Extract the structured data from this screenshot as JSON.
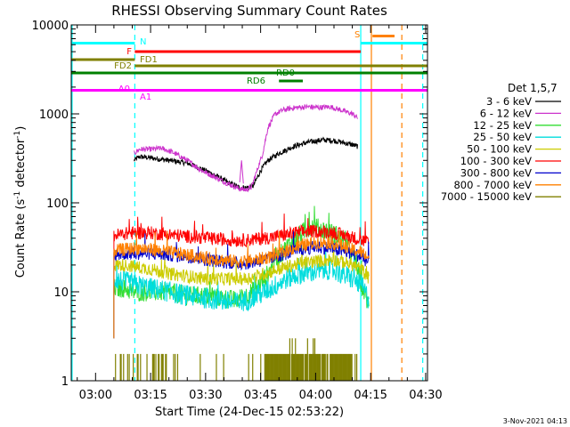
{
  "chart_data": {
    "type": "line",
    "title": "RHESSI Observing Summary Count Rates",
    "xlabel": "Start Time (24-Dec-15 02:53:22)",
    "ylabel_parts": [
      "Count Rate (s",
      "-1",
      " detector",
      "-1",
      ")"
    ],
    "y_scale": "log",
    "xlim_minutes": [
      173.37,
      270.5
    ],
    "ylim": [
      1,
      10000
    ],
    "x_ticks": [
      {
        "m": 180,
        "label": "03:00"
      },
      {
        "m": 195,
        "label": "03:15"
      },
      {
        "m": 210,
        "label": "03:30"
      },
      {
        "m": 225,
        "label": "03:45"
      },
      {
        "m": 240,
        "label": "04:00"
      },
      {
        "m": 255,
        "label": "04:15"
      },
      {
        "m": 270,
        "label": "04:30"
      }
    ],
    "y_ticks": [
      {
        "v": 1,
        "label": "1"
      },
      {
        "v": 10,
        "label": "10"
      },
      {
        "v": 100,
        "label": "100"
      },
      {
        "v": 1000,
        "label": "1000"
      },
      {
        "v": 10000,
        "label": "10000"
      }
    ],
    "legend_title": "Det 1,5,7",
    "legend_position": "right",
    "series": [
      {
        "name": "3 - 6 keV",
        "color": "#000000",
        "points": [
          [
            190.5,
            300
          ],
          [
            192,
            330
          ],
          [
            195,
            320
          ],
          [
            200,
            300
          ],
          [
            205,
            280
          ],
          [
            210,
            230
          ],
          [
            213,
            200
          ],
          [
            216,
            170
          ],
          [
            219,
            150
          ],
          [
            221,
            148
          ],
          [
            223,
            155
          ],
          [
            225,
            230
          ],
          [
            227,
            300
          ],
          [
            230,
            360
          ],
          [
            234,
            430
          ],
          [
            238,
            480
          ],
          [
            242,
            510
          ],
          [
            245,
            500
          ],
          [
            248,
            470
          ],
          [
            250,
            450
          ],
          [
            251.5,
            430
          ]
        ]
      },
      {
        "name": "6 - 12 keV",
        "color": "#cc33cc",
        "points": [
          [
            190.5,
            360
          ],
          [
            192,
            400
          ],
          [
            195,
            400
          ],
          [
            198,
            410
          ],
          [
            201,
            370
          ],
          [
            205,
            300
          ],
          [
            209,
            230
          ],
          [
            213,
            190
          ],
          [
            216,
            165
          ],
          [
            219,
            145
          ],
          [
            221,
            140
          ],
          [
            222.5,
            150
          ],
          [
            224,
            230
          ],
          [
            225.5,
            350
          ],
          [
            227,
            700
          ],
          [
            229,
            1000
          ],
          [
            231,
            1100
          ],
          [
            233,
            1150
          ],
          [
            235,
            1180
          ],
          [
            238,
            1200
          ],
          [
            241,
            1180
          ],
          [
            244,
            1200
          ],
          [
            247,
            1100
          ],
          [
            250,
            1000
          ],
          [
            251.5,
            900
          ]
        ]
      },
      {
        "name": "12 - 25 keV",
        "color": "#33dd33",
        "points": [
          [
            185,
            11
          ],
          [
            188,
            11
          ],
          [
            190,
            10
          ],
          [
            195,
            10
          ],
          [
            200,
            10
          ],
          [
            205,
            9
          ],
          [
            210,
            9
          ],
          [
            215,
            8.5
          ],
          [
            218,
            8
          ],
          [
            221,
            9
          ],
          [
            224,
            11
          ],
          [
            227,
            16
          ],
          [
            230,
            25
          ],
          [
            233,
            35
          ],
          [
            236,
            45
          ],
          [
            239,
            55
          ],
          [
            242,
            50
          ],
          [
            245,
            45
          ],
          [
            248,
            38
          ],
          [
            251,
            22
          ],
          [
            252.5,
            12
          ],
          [
            254,
            8
          ],
          [
            254.6,
            6.5
          ]
        ]
      },
      {
        "name": "25 - 50 keV",
        "color": "#00dddd",
        "points": [
          [
            185,
            14
          ],
          [
            188,
            13
          ],
          [
            191,
            12
          ],
          [
            195,
            11
          ],
          [
            200,
            10
          ],
          [
            205,
            9
          ],
          [
            210,
            8.5
          ],
          [
            214,
            8
          ],
          [
            218,
            7.5
          ],
          [
            221,
            8
          ],
          [
            224,
            9
          ],
          [
            228,
            11
          ],
          [
            232,
            14
          ],
          [
            236,
            16
          ],
          [
            240,
            17
          ],
          [
            244,
            18
          ],
          [
            247,
            16
          ],
          [
            250,
            14
          ],
          [
            252.5,
            12
          ],
          [
            254,
            9
          ],
          [
            254.6,
            8
          ]
        ]
      },
      {
        "name": "50 - 100 keV",
        "color": "#cccc00",
        "points": [
          [
            185,
            20
          ],
          [
            188,
            20
          ],
          [
            191,
            19
          ],
          [
            195,
            18
          ],
          [
            200,
            16
          ],
          [
            205,
            15
          ],
          [
            210,
            14
          ],
          [
            214,
            14
          ],
          [
            218,
            14
          ],
          [
            221,
            14
          ],
          [
            224,
            15
          ],
          [
            228,
            17
          ],
          [
            232,
            19
          ],
          [
            236,
            21
          ],
          [
            240,
            22
          ],
          [
            244,
            23
          ],
          [
            247,
            22
          ],
          [
            250,
            20
          ],
          [
            252.5,
            18
          ],
          [
            254,
            15
          ],
          [
            254.6,
            14
          ]
        ]
      },
      {
        "name": "100 - 300 keV",
        "color": "#ff0000",
        "points": [
          [
            185,
            43
          ],
          [
            188,
            45
          ],
          [
            191,
            46
          ],
          [
            195,
            46
          ],
          [
            200,
            44
          ],
          [
            205,
            42
          ],
          [
            210,
            40
          ],
          [
            214,
            39
          ],
          [
            218,
            38
          ],
          [
            221,
            38
          ],
          [
            224,
            39
          ],
          [
            228,
            41
          ],
          [
            232,
            44
          ],
          [
            236,
            47
          ],
          [
            240,
            48
          ],
          [
            244,
            47
          ],
          [
            247,
            44
          ],
          [
            250,
            41
          ],
          [
            252.5,
            38
          ],
          [
            254,
            36
          ],
          [
            254.6,
            35
          ]
        ]
      },
      {
        "name": "300 - 800 keV",
        "color": "#0000cc",
        "points": [
          [
            185,
            26
          ],
          [
            188,
            27
          ],
          [
            191,
            27
          ],
          [
            195,
            27
          ],
          [
            200,
            26
          ],
          [
            205,
            25
          ],
          [
            210,
            23
          ],
          [
            214,
            22
          ],
          [
            218,
            21
          ],
          [
            221,
            21
          ],
          [
            224,
            22
          ],
          [
            228,
            24
          ],
          [
            232,
            27
          ],
          [
            236,
            30
          ],
          [
            240,
            32
          ],
          [
            244,
            31
          ],
          [
            247,
            29
          ],
          [
            250,
            27
          ],
          [
            252.5,
            25
          ],
          [
            254,
            22
          ],
          [
            254.6,
            20
          ]
        ]
      },
      {
        "name": "800 - 7000 keV",
        "color": "#ff8000",
        "points": [
          [
            185,
            29
          ],
          [
            188,
            30
          ],
          [
            191,
            31
          ],
          [
            195,
            30
          ],
          [
            200,
            28
          ],
          [
            205,
            26
          ],
          [
            210,
            24
          ],
          [
            214,
            23
          ],
          [
            218,
            22
          ],
          [
            221,
            22
          ],
          [
            224,
            23
          ],
          [
            228,
            25
          ],
          [
            232,
            29
          ],
          [
            236,
            33
          ],
          [
            240,
            36
          ],
          [
            244,
            36
          ],
          [
            247,
            33
          ],
          [
            250,
            30
          ],
          [
            252.5,
            28
          ],
          [
            254,
            25
          ],
          [
            254.6,
            24
          ]
        ]
      },
      {
        "name": "7000 - 15000 keV",
        "color": "#808000",
        "points": []
      }
    ],
    "flag_lines": [
      {
        "label": "N",
        "color": "#00ffff",
        "x_start": 173.37,
        "x_end": 190.7,
        "level": 0
      },
      {
        "label": "N",
        "color": "#00ffff",
        "x_start": 252.3,
        "x_end": 270.5,
        "level": 0
      },
      {
        "label": "S",
        "color": "#ff8000",
        "x_start": 255.5,
        "x_end": 261.5,
        "level": 0.35
      },
      {
        "label": "F",
        "color": "#ff0000",
        "x_start": 190.7,
        "x_end": 252.3,
        "level": 1
      },
      {
        "label": "FD1",
        "color": "#808000",
        "x_start": 173.37,
        "x_end": 190.7,
        "level": 2
      },
      {
        "label": "FD2",
        "color": "#808000",
        "x_start": 190.7,
        "x_end": 270.5,
        "level": 3
      },
      {
        "label": "RD0",
        "color": "#008000",
        "x_start": 173.37,
        "x_end": 270.5,
        "level": 4
      },
      {
        "label": "RD6",
        "color": "#008000",
        "x_start": 230,
        "x_end": 236.5,
        "level": 5
      },
      {
        "label": "A0",
        "color": "#ff00ff",
        "x_start": 173.37,
        "x_end": 190.7,
        "level": 6.5
      },
      {
        "label": "A1",
        "color": "#ff00ff",
        "x_start": 190.7,
        "x_end": 270.5,
        "level": 6.5
      }
    ],
    "vertical_markers": [
      {
        "m": 173.6,
        "color": "#00ffff",
        "dashed": false
      },
      {
        "m": 190.7,
        "color": "#00ffff",
        "dashed": true
      },
      {
        "m": 252.3,
        "color": "#00ffff",
        "dashed": false
      },
      {
        "m": 255.2,
        "color": "#ff8000",
        "dashed": false
      },
      {
        "m": 263.5,
        "color": "#ff8000",
        "dashed": true
      },
      {
        "m": 269.2,
        "color": "#00ffff",
        "dashed": true
      }
    ],
    "grid": false
  },
  "footer": {
    "date": "3-Nov-2021 04:13"
  }
}
